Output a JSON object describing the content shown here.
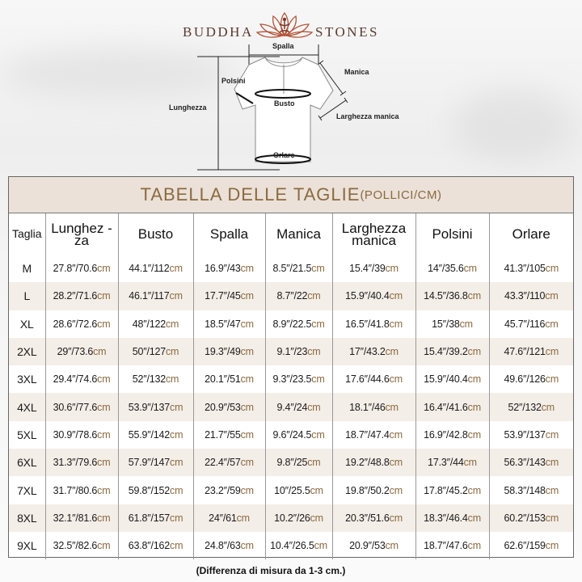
{
  "brand": {
    "left": "BUDDHA",
    "right": "STONES"
  },
  "diagram": {
    "spalla": "Spalla",
    "manica": "Manica",
    "polsini": "Polsini",
    "busto": "Busto",
    "lunghezza": "Lunghezza",
    "larghezza_manica": "Larghezza manica",
    "orlare": "Orlare"
  },
  "table": {
    "title": "TABELLA DELLE TAGLIE",
    "title_units": "(POLLICI/CM)",
    "unit": "cm",
    "headers": [
      "Taglia",
      "Lunghez -za",
      "Busto",
      "Spalla",
      "Manica",
      "Larghezza manica",
      "Polsini",
      "Orlare"
    ],
    "rows": [
      [
        "M",
        "27.8″/70.6",
        "44.1″/112",
        "16.9″/43",
        "8.5″/21.5",
        "15.4″/39",
        "14″/35.6",
        "41.3″/105"
      ],
      [
        "L",
        "28.2″/71.6",
        "46.1″/117",
        "17.7″/45",
        "8.7″/22",
        "15.9″/40.4",
        "14.5″/36.8",
        "43.3″/110"
      ],
      [
        "XL",
        "28.6″/72.6",
        "48″/122",
        "18.5″/47",
        "8.9″/22.5",
        "16.5″/41.8",
        "15″/38",
        "45.7″/116"
      ],
      [
        "2XL",
        "29″/73.6",
        "50″/127",
        "19.3″/49",
        "9.1″/23",
        "17″/43.2",
        "15.4″/39.2",
        "47.6″/121"
      ],
      [
        "3XL",
        "29.4″/74.6",
        "52″/132",
        "20.1″/51",
        "9.3″/23.5",
        "17.6″/44.6",
        "15.9″/40.4",
        "49.6″/126"
      ],
      [
        "4XL",
        "30.6″/77.6",
        "53.9″/137",
        "20.9″/53",
        "9.4″/24",
        "18.1″/46",
        "16.4″/41.6",
        "52″/132"
      ],
      [
        "5XL",
        "30.9″/78.6",
        "55.9″/142",
        "21.7″/55",
        "9.6″/24.5",
        "18.7″/47.4",
        "16.9″/42.8",
        "53.9″/137"
      ],
      [
        "6XL",
        "31.3″/79.6",
        "57.9″/147",
        "22.4″/57",
        "9.8″/25",
        "19.2″/48.8",
        "17.3″/44",
        "56.3″/143"
      ],
      [
        "7XL",
        "31.7″/80.6",
        "59.8″/152",
        "23.2″/59",
        "10″/25.5",
        "19.8″/50.2",
        "17.8″/45.2",
        "58.3″/148"
      ],
      [
        "8XL",
        "32.1″/81.6",
        "61.8″/157",
        "24″/61",
        "10.2″/26",
        "20.3″/51.6",
        "18.3″/46.4",
        "60.2″/153"
      ],
      [
        "9XL",
        "32.5″/82.6",
        "63.8″/162",
        "24.8″/63",
        "10.4″/26.5",
        "20.9″/53",
        "18.7″/47.6",
        "62.6″/159"
      ]
    ]
  },
  "note": "(Differenza di misura da 1-3 cm.)",
  "colors": {
    "accent": "#8b6a40",
    "title_band": "#ebe1d8",
    "row_alt": "#f4eee8",
    "logo": "#b5553a"
  }
}
